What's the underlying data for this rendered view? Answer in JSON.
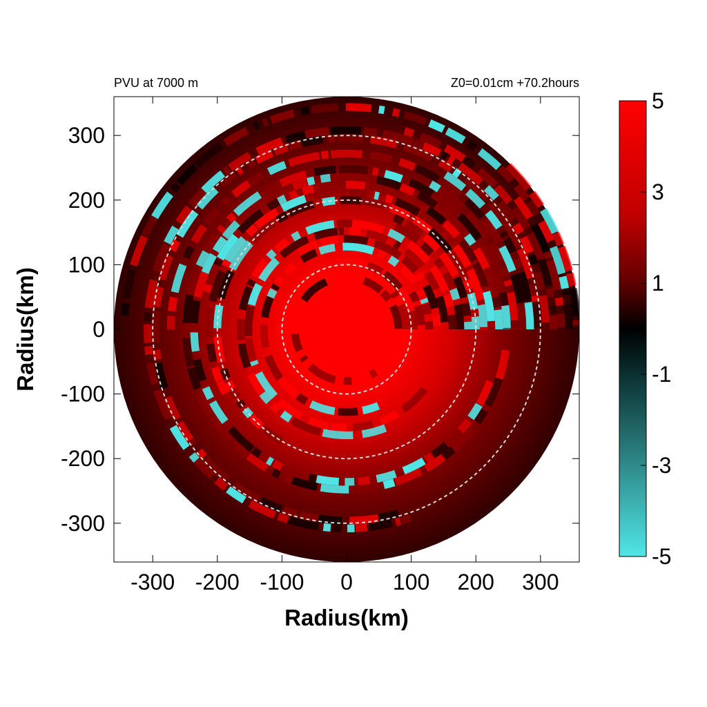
{
  "chart_data": {
    "type": "heatmap",
    "title_left": "PVU at  7000 m",
    "title_right": "Z0=0.01cm  +70.2hours",
    "xlabel": "Radius(km)",
    "ylabel": "Radius(km)",
    "xlim": [
      -360,
      360
    ],
    "ylim": [
      -360,
      360
    ],
    "x_ticks": [
      -300,
      -200,
      -100,
      0,
      100,
      200,
      300
    ],
    "y_ticks": [
      -300,
      -200,
      -100,
      0,
      100,
      200,
      300
    ],
    "x_tick_labels": [
      "-300",
      "-200",
      "-100",
      "0",
      "100",
      "200",
      "300"
    ],
    "y_tick_labels": [
      "-300",
      "-200",
      "-100",
      "0",
      "100",
      "200",
      "300"
    ],
    "domain_radius": 360,
    "dashed_circle_radii": [
      100,
      200,
      300
    ],
    "colorbar": {
      "min": -5,
      "max": 5,
      "ticks": [
        5,
        3,
        1,
        -1,
        -3,
        -5
      ],
      "tick_labels": [
        "5",
        "3",
        "1",
        "-1",
        "-3",
        "-5"
      ],
      "colors": {
        "high": "#ff0000",
        "mid": "#000000",
        "low": "#50e6e6"
      }
    }
  }
}
